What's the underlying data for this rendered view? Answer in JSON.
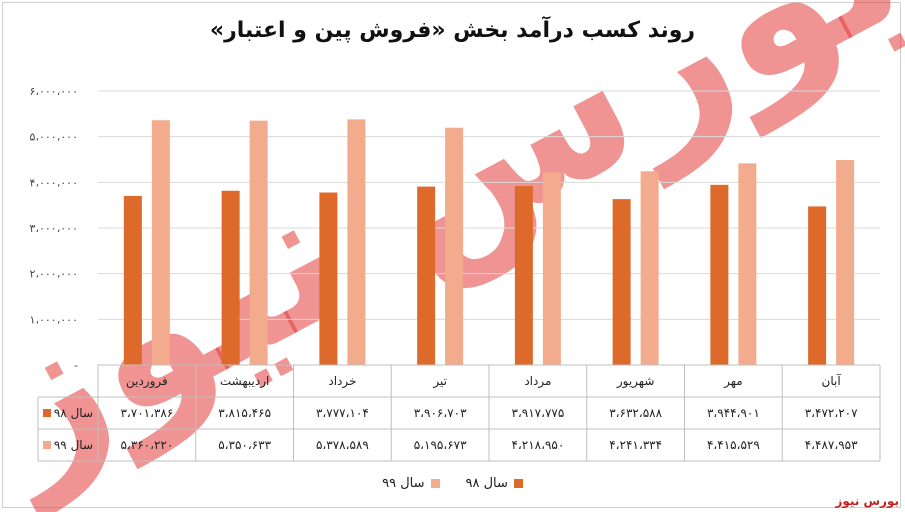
{
  "brand_text": "بورس نیوز",
  "watermark_text": "بورس نیوز",
  "colors": {
    "series98": "#dd6a2a",
    "series99": "#f3ab8d",
    "grid": "#d9d9d9",
    "watermark": "#e23b3b"
  },
  "chart_data": {
    "type": "bar",
    "title": "روند کسب درآمد بخش «فروش پین و اعتبار»",
    "xlabel": "",
    "ylabel": "",
    "ylim": [
      0,
      6000000
    ],
    "yticks": [
      {
        "value": 0,
        "label": "-"
      },
      {
        "value": 1000000,
        "label": "۱،۰۰۰،۰۰۰"
      },
      {
        "value": 2000000,
        "label": "۲،۰۰۰،۰۰۰"
      },
      {
        "value": 3000000,
        "label": "۳،۰۰۰،۰۰۰"
      },
      {
        "value": 4000000,
        "label": "۴،۰۰۰،۰۰۰"
      },
      {
        "value": 5000000,
        "label": "۵،۰۰۰،۰۰۰"
      },
      {
        "value": 6000000,
        "label": "۶،۰۰۰،۰۰۰"
      }
    ],
    "grid": true,
    "legend_position": "bottom",
    "categories": [
      "فروردین",
      "اردیبهشت",
      "خرداد",
      "تیر",
      "مرداد",
      "شهریور",
      "مهر",
      "آبان"
    ],
    "series": [
      {
        "name": "سال ۹۸",
        "values": [
          3701386,
          3815465,
          3777104,
          3906703,
          3917775,
          3632588,
          3944901,
          3472207
        ],
        "labels": [
          "۳،۷۰۱،۳۸۶",
          "۳،۸۱۵،۴۶۵",
          "۳،۷۷۷،۱۰۴",
          "۳،۹۰۶،۷۰۳",
          "۳،۹۱۷،۷۷۵",
          "۳،۶۳۲،۵۸۸",
          "۳،۹۴۴،۹۰۱",
          "۳،۴۷۲،۲۰۷"
        ]
      },
      {
        "name": "سال ۹۹",
        "values": [
          5360220,
          5350633,
          5378589,
          5195673,
          4218950,
          4241334,
          4415529,
          4487953
        ],
        "labels": [
          "۵،۳۶۰،۲۲۰",
          "۵،۳۵۰،۶۳۳",
          "۵،۳۷۸،۵۸۹",
          "۵،۱۹۵،۶۷۳",
          "۴،۲۱۸،۹۵۰",
          "۴،۲۴۱،۳۳۴",
          "۴،۴۱۵،۵۲۹",
          "۴،۴۸۷،۹۵۳"
        ]
      }
    ]
  }
}
